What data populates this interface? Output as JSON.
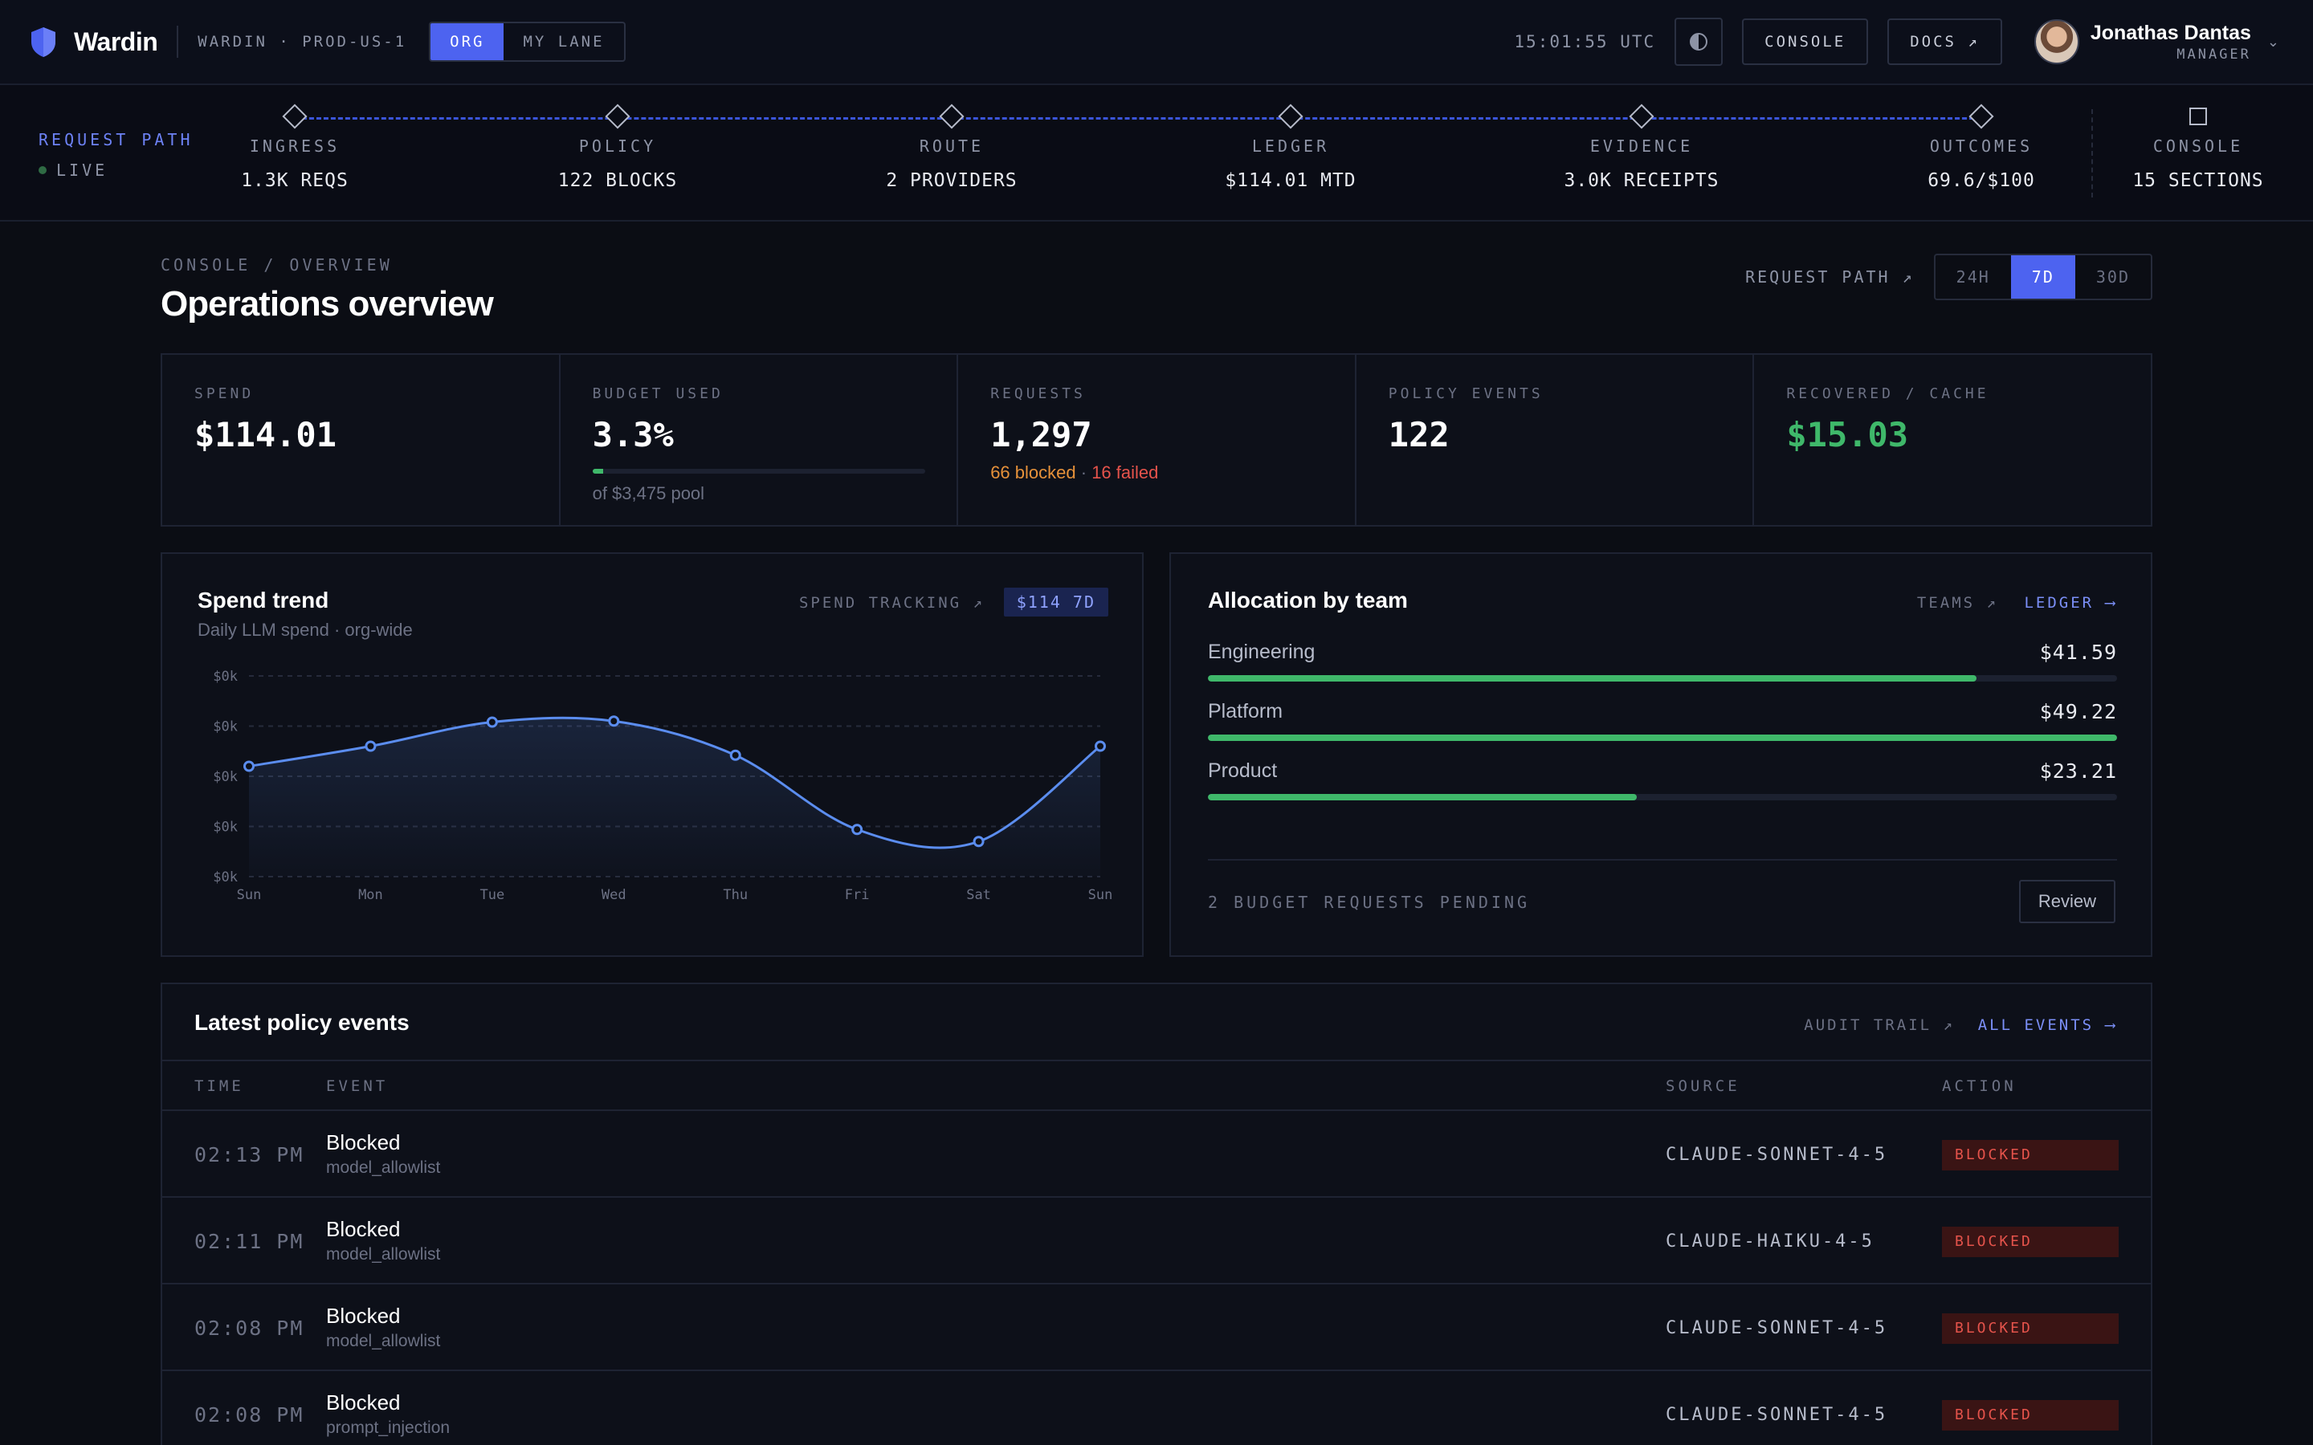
{
  "header": {
    "brand": "Wardin",
    "env": "WARDIN · PROD-US-1",
    "scope_tabs": [
      {
        "label": "ORG",
        "active": true
      },
      {
        "label": "MY LANE",
        "active": false
      }
    ],
    "clock": "15:01:55 UTC",
    "console_label": "CONSOLE",
    "docs_label": "DOCS ↗",
    "user": {
      "name": "Jonathas Dantas",
      "role": "MANAGER"
    }
  },
  "request_path": {
    "label": "REQUEST PATH",
    "status": "LIVE",
    "stages": [
      {
        "label": "INGRESS",
        "value": "1.3K REQS"
      },
      {
        "label": "POLICY",
        "value": "122 BLOCKS"
      },
      {
        "label": "ROUTE",
        "value": "2 PROVIDERS"
      },
      {
        "label": "LEDGER",
        "value": "$114.01 MTD"
      },
      {
        "label": "EVIDENCE",
        "value": "3.0K RECEIPTS"
      },
      {
        "label": "OUTCOMES",
        "value": "69.6/$100"
      },
      {
        "label": "CONSOLE",
        "value": "15 SECTIONS"
      }
    ]
  },
  "page": {
    "breadcrumb": "CONSOLE / OVERVIEW",
    "title": "Operations overview",
    "request_path_link": "REQUEST PATH ↗",
    "ranges": [
      {
        "label": "24H",
        "active": false
      },
      {
        "label": "7D",
        "active": true
      },
      {
        "label": "30D",
        "active": false
      }
    ]
  },
  "kpis": {
    "spend": {
      "label": "SPEND",
      "value": "$114.01"
    },
    "budget": {
      "label": "BUDGET USED",
      "value": "3.3%",
      "progress": 0.033,
      "sub": "of $3,475 pool"
    },
    "requests": {
      "label": "REQUESTS",
      "value": "1,297",
      "blocked": "66 blocked",
      "sep": "·",
      "failed": "16 failed"
    },
    "policy": {
      "label": "POLICY EVENTS",
      "value": "122"
    },
    "recovered": {
      "label": "RECOVERED / CACHE",
      "value": "$15.03"
    }
  },
  "spend_trend": {
    "title": "Spend trend",
    "subtitle": "Daily LLM spend · org-wide",
    "link": "SPEND TRACKING ↗",
    "pill": "$114 7D",
    "line_color": "#5b8def",
    "chart_data": {
      "type": "line",
      "title": "Spend trend",
      "subtitle": "Daily LLM spend · org-wide",
      "xlabel": "",
      "ylabel": "",
      "categories": [
        "Sun",
        "Mon",
        "Tue",
        "Wed",
        "Thu",
        "Fri",
        "Sat",
        "Sun"
      ],
      "y_tick_labels": [
        "$0k",
        "$0k",
        "$0k",
        "$0k",
        "$0k"
      ],
      "values": [
        0.011,
        0.013,
        0.0154,
        0.0155,
        0.0121,
        0.0047,
        0.0035,
        0.013
      ],
      "ylim": [
        0,
        0.02
      ],
      "grid": true
    }
  },
  "allocation": {
    "title": "Allocation by team",
    "teams_link": "TEAMS ↗",
    "ledger_link": "LEDGER ⟶",
    "teams": [
      {
        "name": "Engineering",
        "value": "$41.59",
        "fraction": 0.845
      },
      {
        "name": "Platform",
        "value": "$49.22",
        "fraction": 1.0
      },
      {
        "name": "Product",
        "value": "$23.21",
        "fraction": 0.472
      }
    ],
    "pending": "2 BUDGET REQUESTS PENDING",
    "review": "Review"
  },
  "events": {
    "title": "Latest policy events",
    "audit_link": "AUDIT TRAIL ↗",
    "all_link": "ALL EVENTS ⟶",
    "columns": {
      "time": "TIME",
      "event": "EVENT",
      "source": "SOURCE",
      "action": "ACTION"
    },
    "rows": [
      {
        "time": "02:13 PM",
        "event": "Blocked",
        "rule": "model_allowlist",
        "source": "CLAUDE-SONNET-4-5",
        "action": "BLOCKED"
      },
      {
        "time": "02:11 PM",
        "event": "Blocked",
        "rule": "model_allowlist",
        "source": "CLAUDE-HAIKU-4-5",
        "action": "BLOCKED"
      },
      {
        "time": "02:08 PM",
        "event": "Blocked",
        "rule": "model_allowlist",
        "source": "CLAUDE-SONNET-4-5",
        "action": "BLOCKED"
      },
      {
        "time": "02:08 PM",
        "event": "Blocked",
        "rule": "prompt_injection",
        "source": "CLAUDE-SONNET-4-5",
        "action": "BLOCKED"
      }
    ]
  }
}
